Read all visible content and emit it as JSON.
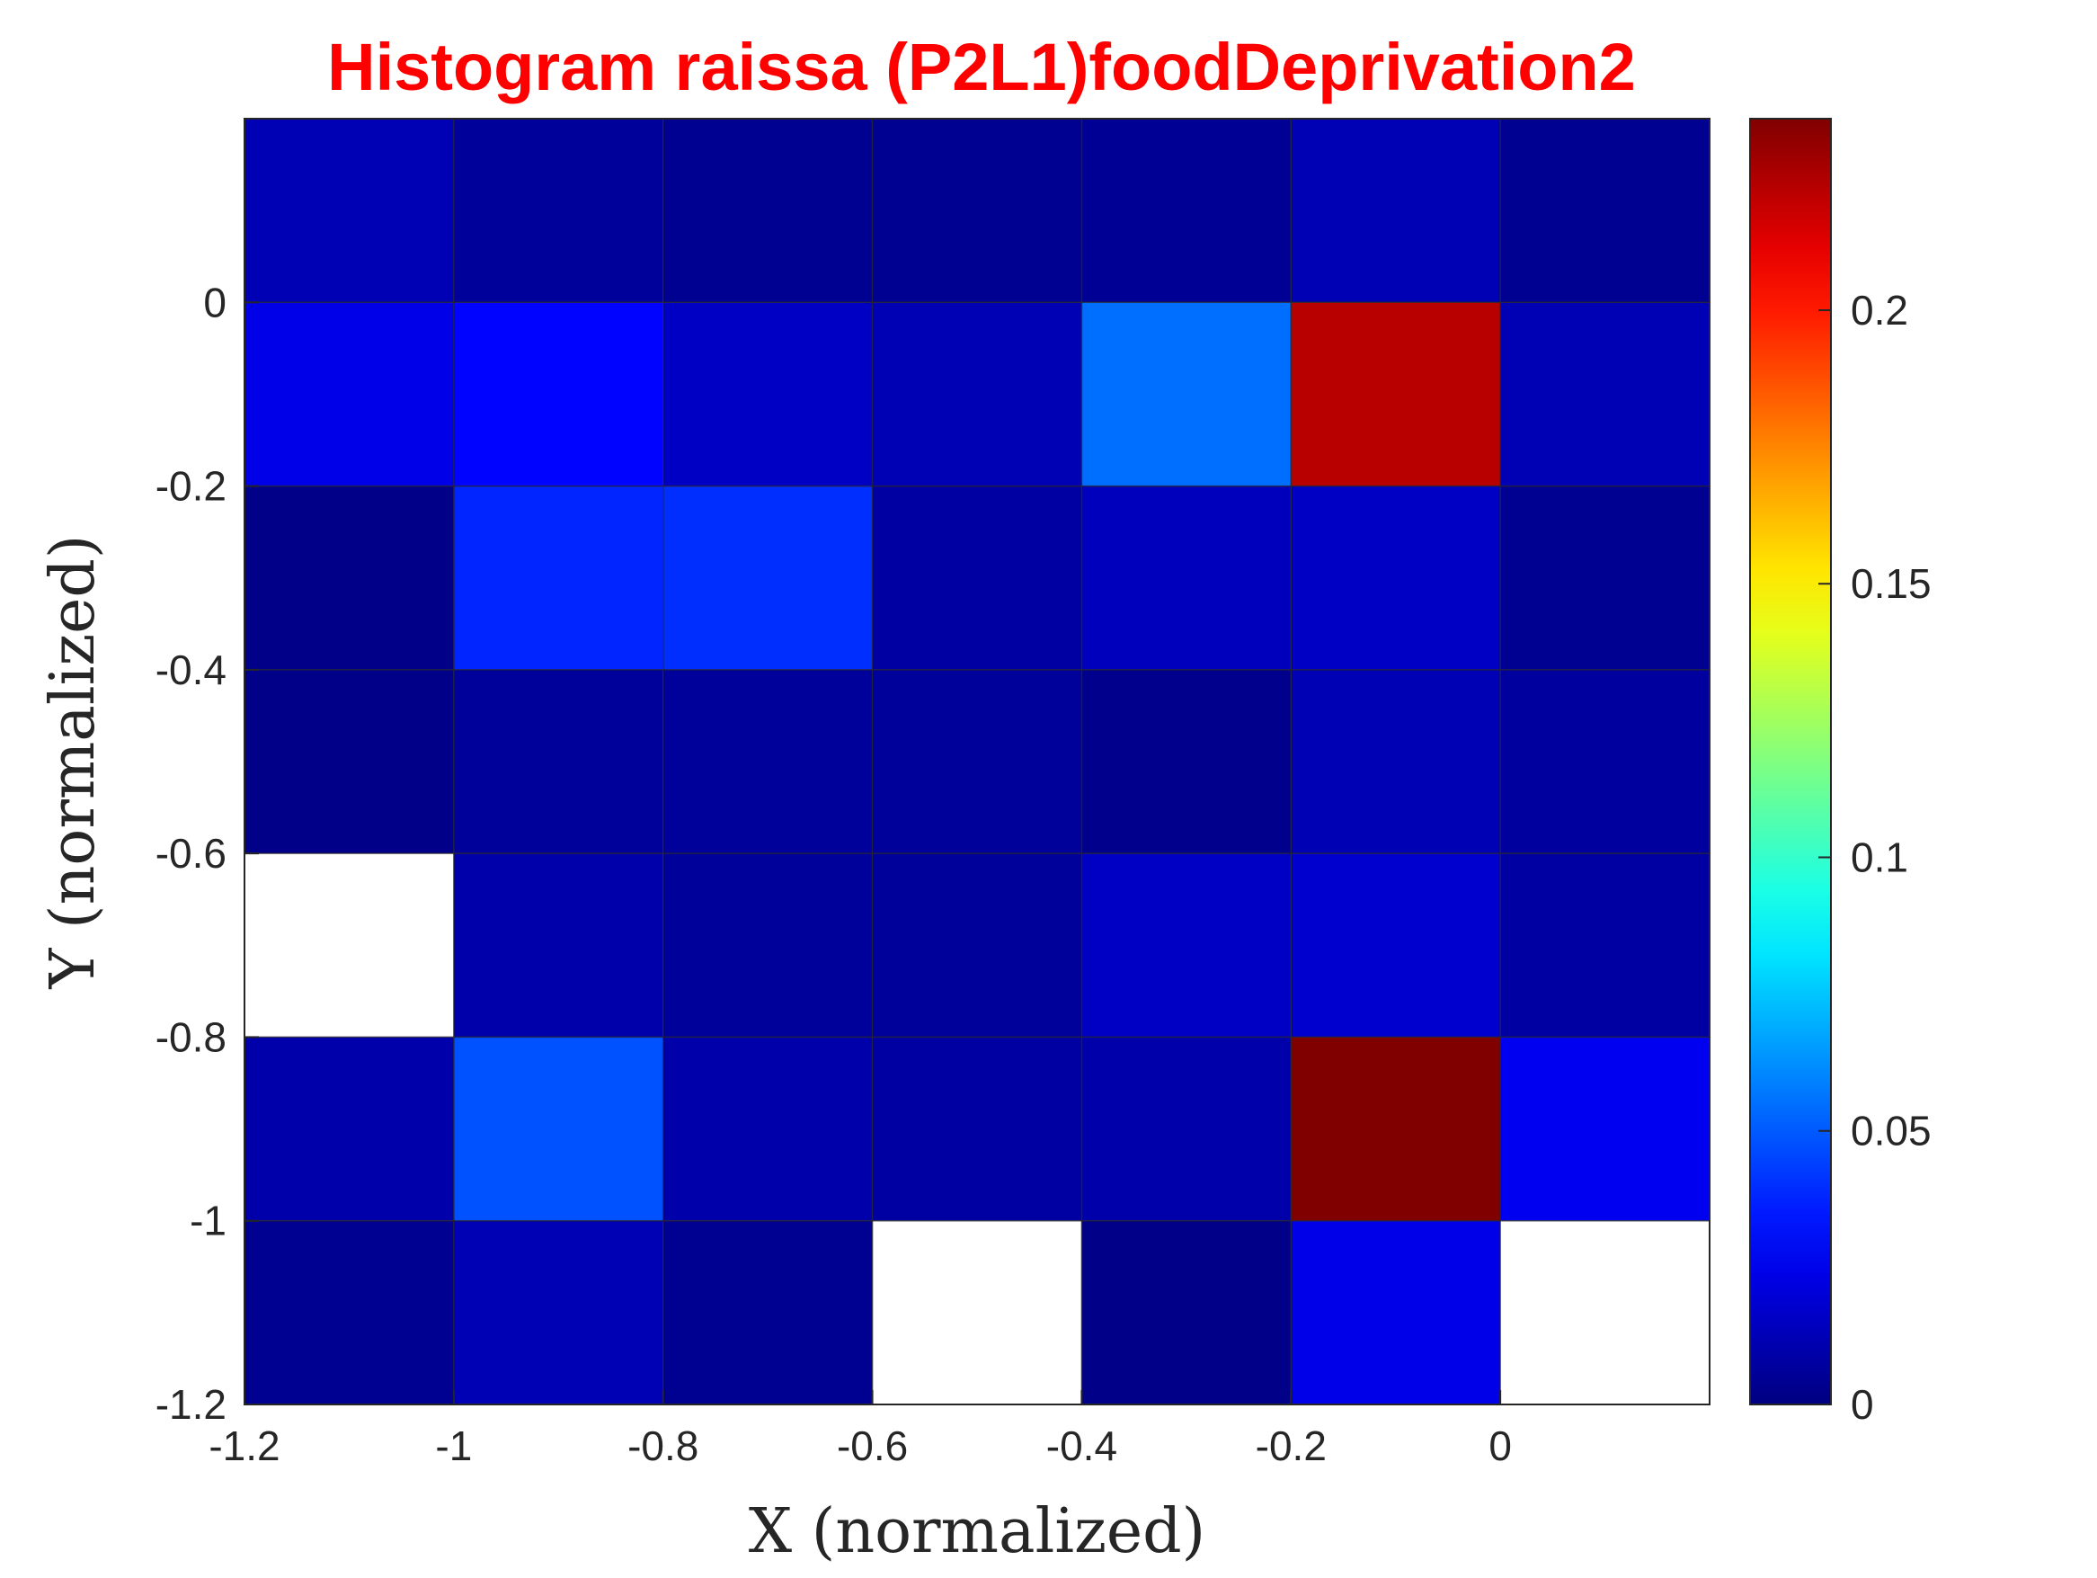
{
  "chart_data": {
    "type": "heatmap",
    "title": "Histogram raissa (P2L1)foodDeprivation2",
    "title_color": "#ff0000",
    "xlabel": "X (normalized)",
    "ylabel": "Y (normalized)",
    "xlim": [
      -1.2,
      0.2
    ],
    "ylim": [
      -1.2,
      0.2
    ],
    "x_ticks": [
      -1.2,
      -1,
      -0.8,
      -0.6,
      -0.4,
      -0.2,
      0
    ],
    "x_tick_labels": [
      "-1.2",
      "-1",
      "-0.8",
      "-0.6",
      "-0.4",
      "-0.2",
      "0"
    ],
    "y_ticks": [
      -1.2,
      -1,
      -0.8,
      -0.6,
      -0.4,
      -0.2,
      0
    ],
    "y_tick_labels": [
      "-1.2",
      "-1",
      "-0.8",
      "-0.6",
      "-0.4",
      "-0.2",
      "0"
    ],
    "x_bin_edges": [
      -1.2,
      -1.0,
      -0.8,
      -0.6,
      -0.4,
      -0.2,
      0.0,
      0.2
    ],
    "y_bin_edges": [
      -1.2,
      -1.0,
      -0.8,
      -0.6,
      -0.4,
      -0.2,
      0.0,
      0.2
    ],
    "colormap": "jet",
    "colorbar": {
      "min": 0,
      "max": 0.235,
      "ticks": [
        0,
        0.05,
        0.1,
        0.15,
        0.2
      ],
      "tick_labels": [
        "0",
        "0.05",
        "0.1",
        "0.15",
        "0.2"
      ]
    },
    "grid": true,
    "empty_cell_color": "#ffffff",
    "rows_top_to_bottom": [
      [
        0.012,
        0.006,
        0.004,
        0.004,
        0.005,
        0.012,
        0.004
      ],
      [
        0.024,
        0.03,
        0.016,
        0.012,
        0.055,
        0.222,
        0.012
      ],
      [
        0.002,
        0.038,
        0.04,
        0.008,
        0.014,
        0.016,
        0.004
      ],
      [
        0.002,
        0.006,
        0.006,
        0.006,
        0.003,
        0.012,
        0.007
      ],
      [
        null,
        0.01,
        0.006,
        0.006,
        0.016,
        0.018,
        0.008
      ],
      [
        0.01,
        0.048,
        0.01,
        0.008,
        0.01,
        0.235,
        0.026
      ],
      [
        0.004,
        0.012,
        0.004,
        null,
        0.002,
        0.024,
        null
      ]
    ]
  }
}
